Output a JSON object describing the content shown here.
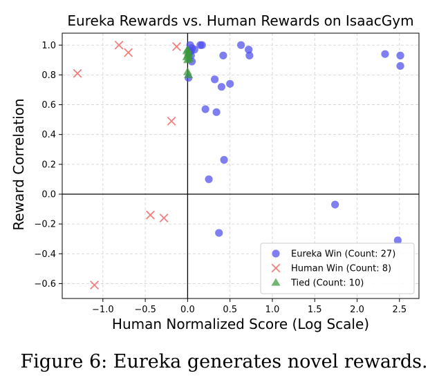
{
  "chart_data": {
    "type": "scatter",
    "title": "Eureka Rewards vs. Human Rewards on IsaacGym",
    "xlabel": "Human Normalized Score (Log Scale)",
    "ylabel": "Reward Correlation",
    "xlim": [
      -1.48,
      2.73
    ],
    "ylim": [
      -0.7,
      1.08
    ],
    "xticks": [
      -1.0,
      -0.5,
      0.0,
      0.5,
      1.0,
      1.5,
      2.0,
      2.5
    ],
    "xtick_labels": [
      "−1.0",
      "−0.5",
      "0.0",
      "0.5",
      "1.0",
      "1.5",
      "2.0",
      "2.5"
    ],
    "yticks": [
      -0.6,
      -0.4,
      -0.2,
      0.0,
      0.2,
      0.4,
      0.6,
      0.8,
      1.0
    ],
    "ytick_labels": [
      "−0.6",
      "−0.4",
      "−0.2",
      "0.0",
      "0.2",
      "0.4",
      "0.6",
      "0.8",
      "1.0"
    ],
    "grid": true,
    "reference_lines": {
      "x": 0,
      "y": 0
    },
    "legend_position": "lower-right",
    "series": [
      {
        "name": "Eureka Win (Count: 27)",
        "marker": "circle",
        "color": "#4d4ded",
        "points": [
          [
            0.02,
            0.95
          ],
          [
            0.03,
            1.0
          ],
          [
            0.04,
            0.96
          ],
          [
            0.05,
            0.98
          ],
          [
            0.15,
            1.0
          ],
          [
            0.17,
            1.0
          ],
          [
            0.04,
            0.93
          ],
          [
            0.05,
            0.89
          ],
          [
            0.01,
            0.78
          ],
          [
            0.42,
            0.93
          ],
          [
            0.63,
            1.0
          ],
          [
            0.72,
            0.97
          ],
          [
            0.73,
            0.93
          ],
          [
            0.32,
            0.77
          ],
          [
            0.4,
            0.72
          ],
          [
            0.5,
            0.74
          ],
          [
            0.21,
            0.57
          ],
          [
            0.34,
            0.55
          ],
          [
            0.43,
            0.23
          ],
          [
            0.25,
            0.1
          ],
          [
            0.37,
            -0.26
          ],
          [
            1.74,
            -0.07
          ],
          [
            2.33,
            0.94
          ],
          [
            2.51,
            0.93
          ],
          [
            2.51,
            0.86
          ],
          [
            2.48,
            -0.31
          ],
          [
            0.08,
            0.97
          ]
        ]
      },
      {
        "name": "Human Win (Count: 8)",
        "marker": "x",
        "color": "#f08080",
        "points": [
          [
            -1.3,
            0.81
          ],
          [
            -0.81,
            1.0
          ],
          [
            -0.7,
            0.95
          ],
          [
            -0.13,
            0.99
          ],
          [
            -0.19,
            0.49
          ],
          [
            -0.44,
            -0.14
          ],
          [
            -0.28,
            -0.16
          ],
          [
            -1.1,
            -0.61
          ]
        ]
      },
      {
        "name": "Tied (Count: 10)",
        "marker": "triangle",
        "color": "#3a9a3a",
        "points": [
          [
            0.0,
            0.97
          ],
          [
            0.01,
            0.95
          ],
          [
            0.0,
            0.93
          ],
          [
            -0.01,
            0.96
          ],
          [
            0.02,
            0.91
          ],
          [
            0.0,
            0.9
          ],
          [
            0.01,
            0.94
          ],
          [
            -0.01,
            0.92
          ],
          [
            0.0,
            0.82
          ],
          [
            0.01,
            0.8
          ]
        ]
      }
    ]
  },
  "caption": "Figure 6: Eureka generates novel rewards."
}
